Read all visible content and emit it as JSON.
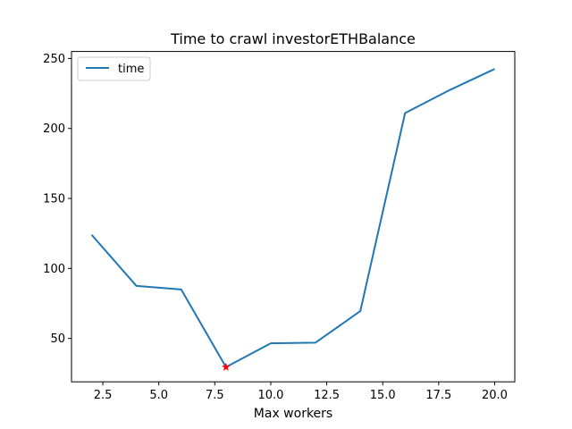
{
  "chart_data": {
    "type": "line",
    "title": "Time to crawl investorETHBalance",
    "xlabel": "Max workers",
    "ylabel": "",
    "xlim": [
      1.1,
      20.9
    ],
    "ylim": [
      19,
      255
    ],
    "xticks": [
      2.5,
      5.0,
      7.5,
      10.0,
      12.5,
      15.0,
      17.5,
      20.0
    ],
    "xtick_labels": [
      "2.5",
      "5.0",
      "7.5",
      "10.0",
      "12.5",
      "15.0",
      "17.5",
      "20.0"
    ],
    "yticks": [
      50,
      100,
      150,
      200,
      250
    ],
    "ytick_labels": [
      "50",
      "100",
      "150",
      "200",
      "250"
    ],
    "grid": false,
    "legend": {
      "position": "top-left"
    },
    "series": [
      {
        "name": "time",
        "color": "#1f77b4",
        "x": [
          2,
          4,
          6,
          8,
          10,
          12,
          14,
          16,
          18,
          20
        ],
        "y": [
          124,
          87.5,
          85,
          29.5,
          46.5,
          47,
          69.5,
          211,
          227.5,
          242.5
        ]
      }
    ],
    "highlight": {
      "x": 8,
      "y": 29.5,
      "marker": "star",
      "color": "#ff0000"
    }
  }
}
